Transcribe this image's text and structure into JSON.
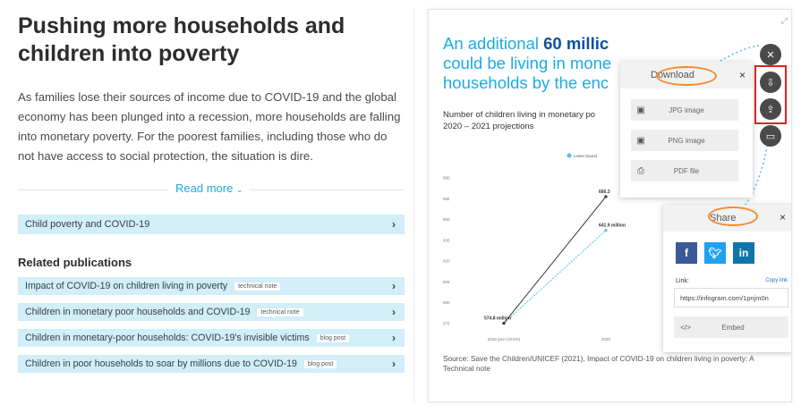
{
  "article": {
    "headline": "Pushing more households and children into poverty",
    "intro": "As families lose their sources of income due to COVID-19 and the global economy has been plunged into a recession, more households are falling into monetary poverty. For the poorest families, including those who do not have access to social protection, the situation is dire.",
    "read_more": "Read more",
    "read_more_icon": "chevron-down-icon",
    "accordion_label": "Child poverty and COVID-19",
    "related_title": "Related publications",
    "publications": [
      {
        "title": "Impact of COVID-19 on children living in poverty",
        "tag": "technical note"
      },
      {
        "title": "Children in monetary poor households and COVID-19",
        "tag": "technical note"
      },
      {
        "title": "Children in monetary-poor households: COVID-19's invisible victims",
        "tag": "blog post"
      },
      {
        "title": "Children in poor households to soar by millions due to COVID-19",
        "tag": "blog post"
      }
    ]
  },
  "infographic": {
    "title_part1": "An additional ",
    "title_highlight": "60 millic",
    "title_line2": "could be living in mone",
    "title_line3": "households by the enc",
    "subtitle_line1": "Number of children living in monetary po",
    "subtitle_line2": "2020 – 2021 projections",
    "source": "Source: Save the Children/UNICEF (2021), Impact of COVID-19 on children living in poverty: A Technical note"
  },
  "chart_data": {
    "type": "line",
    "categories": [
      "2019 (pre-COVID)",
      "2020"
    ],
    "series": [
      {
        "name": "Lower bound",
        "values": [
          574.8,
          641.9
        ]
      },
      {
        "values": [
          574.8,
          666.3
        ]
      }
    ],
    "data_labels": [
      "574.8 million",
      "641.9 million",
      "666.3"
    ],
    "y_ticks": [
      575,
      590,
      605,
      620,
      635,
      650,
      665,
      680
    ],
    "ylim": [
      570,
      685
    ],
    "colors": {
      "lower": "#4fc3e0",
      "upper": "#333333"
    },
    "legend_placement": "top"
  },
  "download_panel": {
    "title": "Download",
    "close": "×",
    "items": [
      {
        "label": "JPG image",
        "icon": "image-icon"
      },
      {
        "label": "PNG image",
        "icon": "image-icon"
      },
      {
        "label": "PDF file",
        "icon": "printer-icon"
      }
    ]
  },
  "share_panel": {
    "title": "Share",
    "close": "×",
    "social": [
      {
        "label": "f",
        "icon": "facebook-icon",
        "color": "#3b5998"
      },
      {
        "label": "t",
        "icon": "twitter-icon",
        "color": "#1da1f2"
      },
      {
        "label": "in",
        "icon": "linkedin-icon",
        "color": "#0e76a8"
      }
    ],
    "link_label": "Link:",
    "copy_label": "Copy link",
    "link_value": "https://infogram.com/1pnjm0n",
    "embed_label": "Embed",
    "embed_icon": "code-icon"
  },
  "toolbar": {
    "close_icon": "close-icon",
    "download_icon": "download-icon",
    "share_icon": "share-icon",
    "comment_icon": "comment-icon"
  },
  "colors": {
    "accent": "#1cabe2",
    "highlight_dark": "#0b4fa0",
    "annotation_orange": "#f48b29",
    "annotation_red": "#e02020",
    "pub_bg": "#d1eef9"
  }
}
